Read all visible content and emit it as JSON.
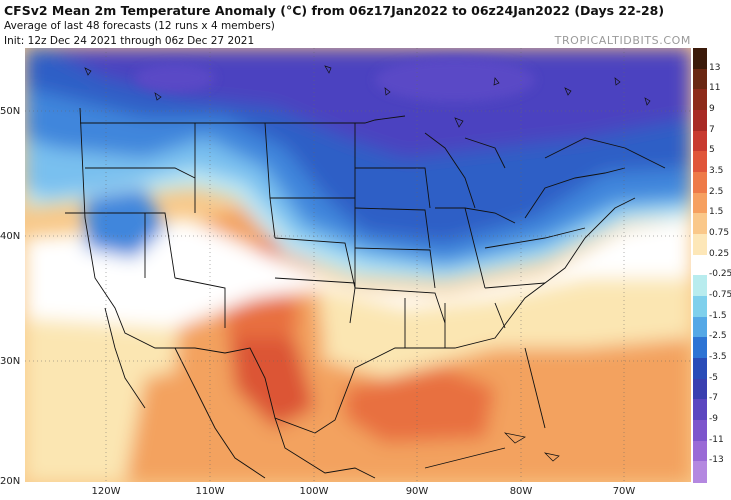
{
  "header": {
    "title": "CFSv2 Mean 2m Temperature Anomaly (°C) from 06z17Jan2022 to 06z24Jan2022 (Days 22-28)",
    "subtitle1": "Average of last 48 forecasts (12 runs x 4 members)",
    "subtitle2": "Init: 12z Dec 24 2021 through 06z Dec 27 2021",
    "brand": "TROPICALTIDBITS.COM"
  },
  "axes": {
    "lat_labels": [
      "50N",
      "40N",
      "30N",
      "20N"
    ],
    "lon_labels": [
      "120W",
      "110W",
      "100W",
      "90W",
      "80W",
      "70W"
    ]
  },
  "colorbar": {
    "labels": [
      "13",
      "11",
      "9",
      "7",
      "5",
      "3.5",
      "2.5",
      "1.5",
      "0.75",
      "0.25",
      "-0.25",
      "-0.75",
      "-1.5",
      "-2.5",
      "-3.5",
      "-5",
      "-7",
      "-9",
      "-11",
      "-13"
    ],
    "colors": [
      "#3b1a0a",
      "#6a2712",
      "#8d2a1a",
      "#a82a25",
      "#c83a30",
      "#e0553a",
      "#ee7a48",
      "#f6a060",
      "#fac88a",
      "#fde7b8",
      "#ffffff",
      "#b8ecee",
      "#7fd0ec",
      "#55a8e6",
      "#2e74d4",
      "#2a4cb8",
      "#3a3fb0",
      "#5c46c0",
      "#7d55cc",
      "#9a6ad6",
      "#b488e0"
    ]
  },
  "map": {
    "colors": {
      "deep_purple": "#4b42c0",
      "blue": "#2f5fc6",
      "mid_blue": "#3f86dc",
      "light_blue": "#79c0ef",
      "pale_cyan": "#bfe9f4",
      "white": "#ffffff",
      "pale_yellow": "#fbe6b2",
      "light_orange": "#f8c888",
      "orange": "#f3a25f",
      "dark_orange": "#e8703f",
      "red_orange": "#dc5536"
    }
  }
}
